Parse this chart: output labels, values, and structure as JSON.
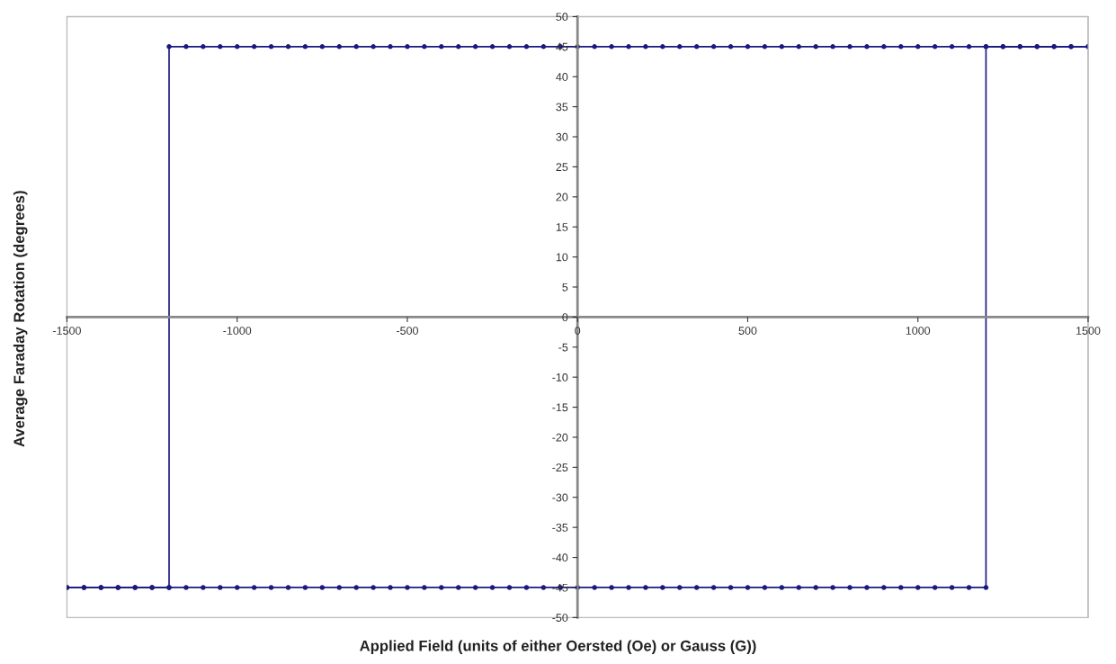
{
  "chart_data": {
    "type": "line",
    "xlabel": "Applied Field (units of either Oersted (Oe) or Gauss (G))",
    "ylabel": "Average Faraday Rotation (degrees)",
    "xlim": [
      -1500,
      1500
    ],
    "xticks": [
      -1500,
      -1000,
      -500,
      0,
      500,
      1000,
      1500
    ],
    "ylim": [
      -50,
      50
    ],
    "yticks": [
      -50,
      -45,
      -40,
      -35,
      -30,
      -25,
      -20,
      -15,
      -10,
      -5,
      0,
      5,
      10,
      15,
      20,
      25,
      30,
      35,
      40,
      45,
      50
    ],
    "grid": false,
    "marker": "circle",
    "line_style": "solid",
    "series": [
      {
        "color": "#1a1a80",
        "x": [
          -1500,
          -1450,
          -1400,
          -1350,
          -1300,
          -1250,
          -1200,
          -1150,
          -1100,
          -1050,
          -1000,
          -950,
          -900,
          -850,
          -800,
          -750,
          -700,
          -650,
          -600,
          -550,
          -500,
          -450,
          -400,
          -350,
          -300,
          -250,
          -200,
          -150,
          -100,
          -50,
          0,
          50,
          100,
          150,
          200,
          250,
          300,
          350,
          400,
          450,
          500,
          550,
          600,
          650,
          700,
          750,
          800,
          850,
          900,
          950,
          1000,
          1050,
          1100,
          1150,
          1200,
          1200,
          1250,
          1300,
          1350,
          1400,
          1450,
          1500
        ],
        "values": [
          -45,
          -45,
          -45,
          -45,
          -45,
          -45,
          -45,
          -45,
          -45,
          -45,
          -45,
          -45,
          -45,
          -45,
          -45,
          -45,
          -45,
          -45,
          -45,
          -45,
          -45,
          -45,
          -45,
          -45,
          -45,
          -45,
          -45,
          -45,
          -45,
          -45,
          -45,
          -45,
          -45,
          -45,
          -45,
          -45,
          -45,
          -45,
          -45,
          -45,
          -45,
          -45,
          -45,
          -45,
          -45,
          -45,
          -45,
          -45,
          -45,
          -45,
          -45,
          -45,
          -45,
          -45,
          -45,
          45,
          45,
          45,
          45,
          45,
          45,
          45
        ]
      },
      {
        "color": "#1a1a80",
        "x": [
          1500,
          1450,
          1400,
          1350,
          1300,
          1250,
          1200,
          1150,
          1100,
          1050,
          1000,
          950,
          900,
          850,
          800,
          750,
          700,
          650,
          600,
          550,
          500,
          450,
          400,
          350,
          300,
          250,
          200,
          150,
          100,
          50,
          0,
          -50,
          -100,
          -150,
          -200,
          -250,
          -300,
          -350,
          -400,
          -450,
          -500,
          -550,
          -600,
          -650,
          -700,
          -750,
          -800,
          -850,
          -900,
          -950,
          -1000,
          -1050,
          -1100,
          -1150,
          -1200,
          -1200,
          -1250,
          -1300,
          -1350,
          -1400,
          -1450,
          -1500
        ],
        "values": [
          45,
          45,
          45,
          45,
          45,
          45,
          45,
          45,
          45,
          45,
          45,
          45,
          45,
          45,
          45,
          45,
          45,
          45,
          45,
          45,
          45,
          45,
          45,
          45,
          45,
          45,
          45,
          45,
          45,
          45,
          45,
          45,
          45,
          45,
          45,
          45,
          45,
          45,
          45,
          45,
          45,
          45,
          45,
          45,
          45,
          45,
          45,
          45,
          45,
          45,
          45,
          45,
          45,
          45,
          45,
          -45,
          -45,
          -45,
          -45,
          -45,
          -45,
          -45
        ]
      }
    ]
  }
}
